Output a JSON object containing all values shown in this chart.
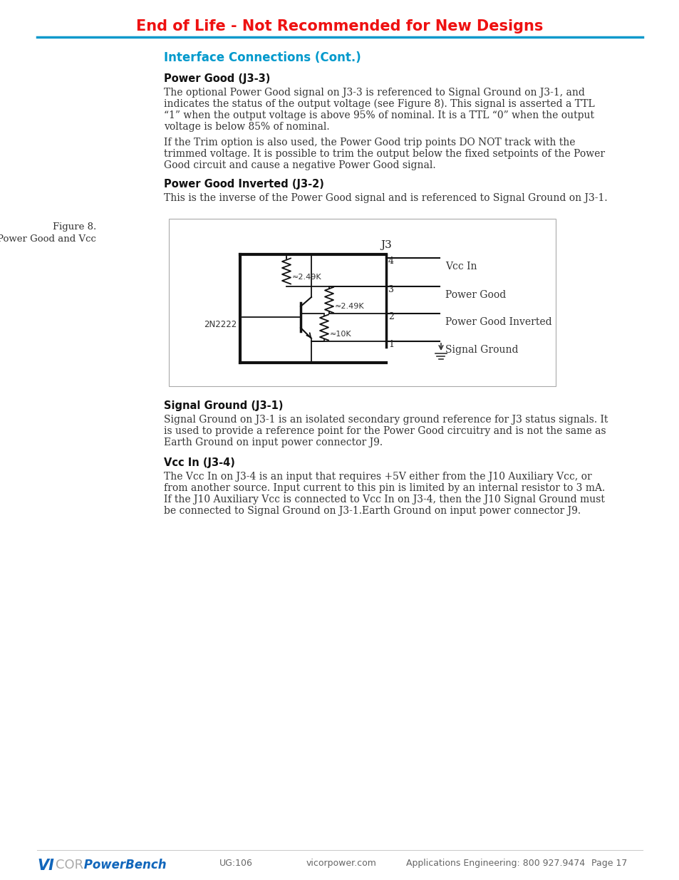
{
  "title": "End of Life - Not Recommended for New Designs",
  "title_color": "#ee1111",
  "header_line_color": "#1199cc",
  "section_title": "Interface Connections (Cont.)",
  "section_title_color": "#0099cc",
  "background_color": "#ffffff",
  "subsection1_title": "Power Good (J3-3)",
  "subsection1_para1": "The optional Power Good signal on J3-3 is referenced to Signal Ground on J3-1, and\nindicates the status of the output voltage (see Figure 8). This signal is asserted a TTL\n“1” when the output voltage is above 95% of nominal. It is a TTL “0” when the output\nvoltage is below 85% of nominal.",
  "subsection1_para2": "If the Trim option is also used, the Power Good trip points DO NOT track with the\ntrimmed voltage. It is possible to trim the output below the fixed setpoints of the Power\nGood circuit and cause a negative Power Good signal.",
  "subsection2_title": "Power Good Inverted (J3-2)",
  "subsection2_para": "This is the inverse of the Power Good signal and is referenced to Signal Ground on J3-1.",
  "figure_label": "Figure 8.",
  "figure_sublabel": "Power Good and Vcc",
  "subsection3_title": "Signal Ground (J3-1)",
  "subsection3_para": "Signal Ground on J3-1 is an isolated secondary ground reference for J3 status signals. It\nis used to provide a reference point for the Power Good circuitry and is not the same as\nEarth Ground on input power connector J9.",
  "subsection4_title": "Vcc In (J3-4)",
  "subsection4_para": "The Vcc In on J3-4 is an input that requires +5V either from the J10 Auxiliary Vcc, or\nfrom another source. Input current to this pin is limited by an internal resistor to 3 mA.\nIf the J10 Auxiliary Vcc is connected to Vcc In on J3-4, then the J10 Signal Ground must\nbe connected to Signal Ground on J3-1.Earth Ground on input power connector J9.",
  "footer_ug": "UG:106",
  "footer_web": "vicorpower.com",
  "footer_app": "Applications Engineering: 800 927.9474",
  "footer_page": "Page 17",
  "footer_color": "#0077bb",
  "footer_text_color": "#666666"
}
